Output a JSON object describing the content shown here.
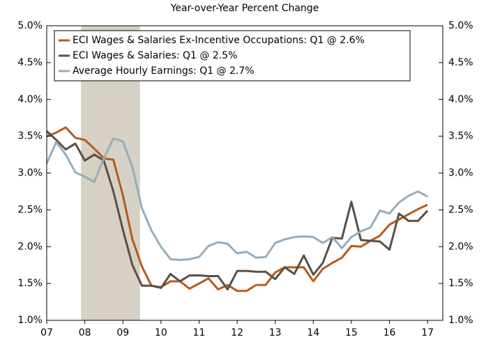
{
  "chart_data": {
    "type": "line",
    "subtitle": "Year-over-Year Percent Change",
    "x": [
      2007,
      2007.25,
      2007.5,
      2007.75,
      2008,
      2008.25,
      2008.5,
      2008.75,
      2009,
      2009.25,
      2009.5,
      2009.75,
      2010,
      2010.25,
      2010.5,
      2010.75,
      2011,
      2011.25,
      2011.5,
      2011.75,
      2012,
      2012.25,
      2012.5,
      2012.75,
      2013,
      2013.25,
      2013.5,
      2013.75,
      2014,
      2014.25,
      2014.5,
      2014.75,
      2015,
      2015.25,
      2015.5,
      2015.75,
      2016,
      2016.25,
      2016.5,
      2016.75,
      2017
    ],
    "series": [
      {
        "name": "ECI Wages & Salaries Ex-Incentive Occupations: Q1 @ 2.6%",
        "color": "#b35c1e",
        "values": [
          3.5,
          3.55,
          3.62,
          3.48,
          3.45,
          3.33,
          3.2,
          3.18,
          2.7,
          2.1,
          1.73,
          1.47,
          1.45,
          1.53,
          1.53,
          1.43,
          1.5,
          1.57,
          1.42,
          1.48,
          1.4,
          1.4,
          1.48,
          1.48,
          1.65,
          1.72,
          1.72,
          1.72,
          1.53,
          1.7,
          1.78,
          1.85,
          2.01,
          2.0,
          2.08,
          2.15,
          2.3,
          2.37,
          2.44,
          2.51,
          2.57
        ]
      },
      {
        "name": "ECI Wages & Salaries: Q1 @ 2.5%",
        "color": "#5b4f44",
        "values": [
          3.57,
          3.45,
          3.32,
          3.4,
          3.17,
          3.25,
          3.17,
          2.75,
          2.23,
          1.75,
          1.47,
          1.47,
          1.44,
          1.63,
          1.53,
          1.61,
          1.61,
          1.6,
          1.6,
          1.42,
          1.67,
          1.67,
          1.66,
          1.66,
          1.56,
          1.72,
          1.63,
          1.88,
          1.62,
          1.78,
          2.12,
          2.11,
          2.61,
          2.09,
          2.08,
          2.07,
          1.96,
          2.45,
          2.35,
          2.35,
          2.49
        ]
      },
      {
        "name": "Average Hourly Earnings: Q1 @ 2.7%",
        "color": "#95adbd",
        "values": [
          3.13,
          3.42,
          3.25,
          3.01,
          2.95,
          2.88,
          3.2,
          3.47,
          3.43,
          3.08,
          2.52,
          2.22,
          2.0,
          1.83,
          1.82,
          1.83,
          1.86,
          2.01,
          2.06,
          2.04,
          1.91,
          1.93,
          1.85,
          1.86,
          2.05,
          2.1,
          2.13,
          2.14,
          2.13,
          2.05,
          2.13,
          1.98,
          2.13,
          2.21,
          2.26,
          2.49,
          2.45,
          2.6,
          2.69,
          2.75,
          2.68
        ]
      }
    ],
    "shaded_region": [
      2007.9,
      2009.45
    ],
    "shade_color": "#d6d1c4",
    "xlim": [
      2007,
      2017.4
    ],
    "xticks": [
      {
        "value": 2007,
        "label": "07"
      },
      {
        "value": 2008,
        "label": "08"
      },
      {
        "value": 2009,
        "label": "09"
      },
      {
        "value": 2010,
        "label": "10"
      },
      {
        "value": 2011,
        "label": "11"
      },
      {
        "value": 2012,
        "label": "12"
      },
      {
        "value": 2013,
        "label": "13"
      },
      {
        "value": 2014,
        "label": "14"
      },
      {
        "value": 2015,
        "label": "15"
      },
      {
        "value": 2016,
        "label": "16"
      },
      {
        "value": 2017,
        "label": "17"
      }
    ],
    "ylim": [
      1,
      5
    ],
    "yticks": [
      {
        "value": 1,
        "label": "1.0%"
      },
      {
        "value": 1.5,
        "label": "1.5%"
      },
      {
        "value": 2,
        "label": "2.0%"
      },
      {
        "value": 2.5,
        "label": "2.5%"
      },
      {
        "value": 3,
        "label": "3.0%"
      },
      {
        "value": 3.5,
        "label": "3.5%"
      },
      {
        "value": 4,
        "label": "4.0%"
      },
      {
        "value": 4.5,
        "label": "4.5%"
      },
      {
        "value": 5,
        "label": "5.0%"
      }
    ],
    "y2lim": [
      1,
      5
    ],
    "y2ticks": [
      {
        "value": 1,
        "label": "1.0%"
      },
      {
        "value": 1.5,
        "label": "1.5%"
      },
      {
        "value": 2,
        "label": "2.0%"
      },
      {
        "value": 2.5,
        "label": "2.5%"
      },
      {
        "value": 3,
        "label": "3.0%"
      },
      {
        "value": 3.5,
        "label": "3.5%"
      },
      {
        "value": 4,
        "label": "4.0%"
      },
      {
        "value": 4.5,
        "label": "4.5%"
      },
      {
        "value": 5,
        "label": "5.0%"
      }
    ],
    "legend": "upper left",
    "grid": false
  }
}
